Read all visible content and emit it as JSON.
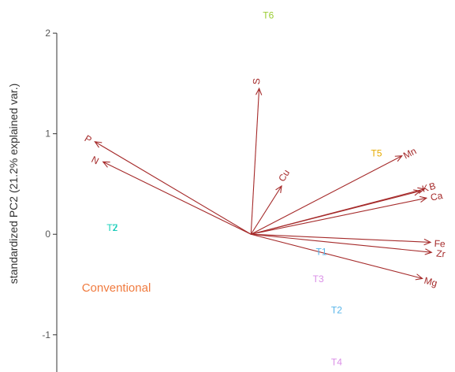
{
  "chart_data": {
    "type": "scatter",
    "subtype": "pca-biplot",
    "title": "",
    "xlabel": "",
    "ylabel": "standardized PC2 (21.2% explained var.)",
    "xlim": [
      -1.95,
      2.0
    ],
    "ylim": [
      -1.37,
      2.33
    ],
    "yticks": [
      -1,
      0,
      1,
      2
    ],
    "ytick_labels": [
      "-1",
      "0",
      "1",
      "2"
    ],
    "grid": false,
    "legend": "none",
    "loadings": [
      {
        "label": "S",
        "x": 0.08,
        "y": 1.45,
        "label_x": 0.06,
        "label_y": 1.52
      },
      {
        "label": "P",
        "x": -1.53,
        "y": 0.92,
        "label_x": -1.6,
        "label_y": 0.94
      },
      {
        "label": "N",
        "x": -1.45,
        "y": 0.72,
        "label_x": -1.53,
        "label_y": 0.73
      },
      {
        "label": "Cu",
        "x": 0.3,
        "y": 0.48,
        "label_x": 0.33,
        "label_y": 0.58
      },
      {
        "label": "Mn",
        "x": 1.48,
        "y": 0.78,
        "label_x": 1.56,
        "label_y": 0.8
      },
      {
        "label": "B",
        "x": 1.7,
        "y": 0.45,
        "label_x": 1.78,
        "label_y": 0.47
      },
      {
        "label": "K",
        "x": 1.66,
        "y": 0.43,
        "label_x": 1.71,
        "label_y": 0.45
      },
      {
        "label": "Ca",
        "x": 1.72,
        "y": 0.36,
        "label_x": 1.82,
        "label_y": 0.37
      },
      {
        "label": "Fe",
        "x": 1.76,
        "y": -0.08,
        "label_x": 1.85,
        "label_y": -0.1
      },
      {
        "label": "Zr",
        "x": 1.77,
        "y": -0.18,
        "label_x": 1.86,
        "label_y": -0.2
      },
      {
        "label": "Mg",
        "x": 1.68,
        "y": -0.44,
        "label_x": 1.76,
        "label_y": -0.48
      }
    ],
    "observations": [
      {
        "label": "T6",
        "x": 0.17,
        "y": 2.17,
        "color": "#9acd32"
      },
      {
        "label": "T5",
        "x": 1.23,
        "y": 0.8,
        "color": "#e6ab02"
      },
      {
        "label": "T1",
        "x": 0.69,
        "y": -0.18,
        "color": "#56b4e9"
      },
      {
        "label": "T3",
        "x": 0.66,
        "y": -0.45,
        "color": "#da8ee7"
      },
      {
        "label": "T2",
        "x": 0.84,
        "y": -0.76,
        "color": "#56b4e9"
      },
      {
        "label": "T4",
        "x": 0.84,
        "y": -1.28,
        "color": "#da8ee7"
      },
      {
        "label": "T2",
        "x": -1.36,
        "y": 0.06,
        "color": "#00c0af"
      },
      {
        "label": "T7",
        "x": -1.36,
        "y": 0.06,
        "color": "#2ad6c0"
      }
    ],
    "groups": [
      {
        "label": "Conventional",
        "x": -1.32,
        "y": -0.54,
        "color": "#f07b3f"
      }
    ],
    "arrow_color": "#a52a2a"
  }
}
